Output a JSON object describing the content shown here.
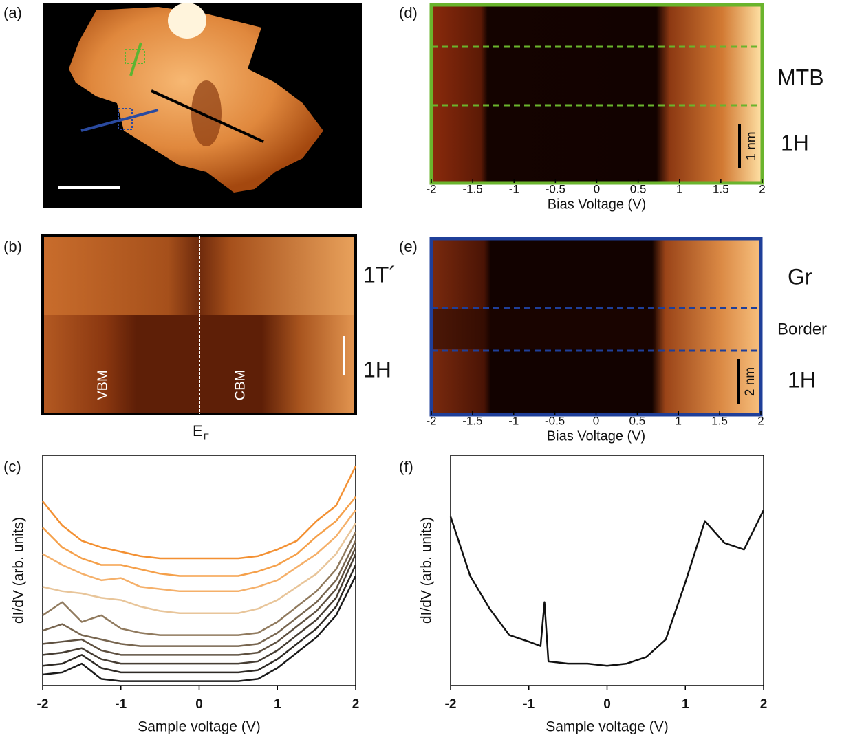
{
  "chart_data": [
    {
      "type": "image",
      "panel": "(a)"
    },
    {
      "type": "heatmap",
      "panel": "(b)",
      "region_labels": [
        "1T´",
        "1H"
      ],
      "band_labels": [
        "VBM",
        "CBM"
      ],
      "fermi_label": "E",
      "fermi_subscript": "F"
    },
    {
      "type": "line",
      "panel": "(c)",
      "xlabel": "Sample voltage (V)",
      "ylabel": "dI/dV (arb. units)",
      "xlim": [
        -2,
        2
      ],
      "xticks": [
        -2,
        -1,
        0,
        1,
        2
      ],
      "ylim": [
        0,
        10.5
      ],
      "x": [
        -2,
        -1.75,
        -1.5,
        -1.25,
        -1,
        -0.75,
        -0.5,
        -0.25,
        0,
        0.25,
        0.5,
        0.75,
        1,
        1.25,
        1.5,
        1.75,
        2
      ],
      "series": [
        {
          "color": "#1a1a1a",
          "values": [
            0.5,
            0.6,
            1.0,
            0.3,
            0.2,
            0.2,
            0.2,
            0.2,
            0.2,
            0.2,
            0.2,
            0.3,
            0.8,
            1.5,
            2.2,
            3.2,
            5.0
          ]
        },
        {
          "color": "#2e2a25",
          "values": [
            0.9,
            1.0,
            1.4,
            0.8,
            0.6,
            0.6,
            0.6,
            0.6,
            0.6,
            0.6,
            0.6,
            0.7,
            1.2,
            1.9,
            2.6,
            3.6,
            5.5
          ]
        },
        {
          "color": "#463d33",
          "values": [
            1.4,
            1.5,
            1.7,
            1.2,
            1.0,
            1.0,
            1.0,
            1.0,
            1.0,
            1.0,
            1.0,
            1.1,
            1.6,
            2.3,
            3.0,
            4.0,
            6.0
          ]
        },
        {
          "color": "#5e5040",
          "values": [
            1.9,
            2.0,
            2.1,
            1.6,
            1.4,
            1.4,
            1.4,
            1.4,
            1.4,
            1.4,
            1.4,
            1.5,
            2.0,
            2.7,
            3.4,
            4.4,
            6.3
          ]
        },
        {
          "color": "#77654f",
          "values": [
            2.5,
            2.8,
            2.3,
            2.1,
            1.9,
            1.8,
            1.8,
            1.8,
            1.8,
            1.8,
            1.8,
            1.9,
            2.4,
            3.1,
            3.8,
            4.8,
            6.6
          ]
        },
        {
          "color": "#907a5e",
          "values": [
            3.2,
            3.8,
            2.9,
            3.2,
            2.6,
            2.4,
            2.3,
            2.3,
            2.3,
            2.3,
            2.3,
            2.4,
            2.9,
            3.6,
            4.3,
            5.3,
            7.0
          ]
        },
        {
          "color": "#e8c59a",
          "values": [
            4.5,
            4.3,
            4.2,
            4.0,
            3.9,
            3.6,
            3.4,
            3.3,
            3.3,
            3.3,
            3.3,
            3.5,
            3.9,
            4.5,
            5.1,
            6.0,
            7.4
          ]
        },
        {
          "color": "#f5b06a",
          "values": [
            6.0,
            5.5,
            5.1,
            4.8,
            4.9,
            4.5,
            4.4,
            4.3,
            4.3,
            4.3,
            4.3,
            4.5,
            4.8,
            5.4,
            6.0,
            6.8,
            8.0
          ]
        },
        {
          "color": "#f5a04a",
          "values": [
            7.2,
            6.3,
            5.8,
            5.5,
            5.5,
            5.3,
            5.1,
            5.0,
            5.0,
            5.0,
            5.0,
            5.2,
            5.5,
            6.0,
            6.8,
            7.5,
            8.6
          ]
        },
        {
          "color": "#f39032",
          "values": [
            8.4,
            7.3,
            6.6,
            6.3,
            6.1,
            5.9,
            5.8,
            5.8,
            5.8,
            5.8,
            5.8,
            5.9,
            6.2,
            6.6,
            7.5,
            8.2,
            10.0
          ]
        }
      ]
    },
    {
      "type": "heatmap",
      "panel": "(d)",
      "xlabel": "Bias Voltage (V)",
      "xlim": [
        -2,
        2
      ],
      "xticks": [
        -2,
        -1.5,
        -1,
        -0.5,
        0,
        0.5,
        1,
        1.5,
        2
      ],
      "region_labels": [
        "MTB",
        "1H"
      ],
      "scale_label": "1 nm",
      "frame_color": "#6ab42d"
    },
    {
      "type": "heatmap",
      "panel": "(e)",
      "xlabel": "Bias Voltage (V)",
      "xlim": [
        -2,
        2
      ],
      "xticks": [
        -2,
        -1.5,
        -1,
        -0.5,
        0,
        0.5,
        1,
        1.5,
        2
      ],
      "region_labels": [
        "Gr",
        "Border",
        "1H"
      ],
      "scale_label": "2 nm",
      "frame_color": "#1f3f99"
    },
    {
      "type": "line",
      "panel": "(f)",
      "xlabel": "Sample voltage (V)",
      "ylabel": "dI/dV (arb. units)",
      "xlim": [
        -2,
        2
      ],
      "xticks": [
        -2,
        -1,
        0,
        1,
        2
      ],
      "ylim": [
        0,
        10.5
      ],
      "x": [
        -2,
        -1.75,
        -1.5,
        -1.25,
        -1,
        -0.85,
        -0.8,
        -0.75,
        -0.5,
        -0.25,
        0,
        0.25,
        0.5,
        0.75,
        1,
        1.25,
        1.5,
        1.75,
        2
      ],
      "series": [
        {
          "color": "#111111",
          "values": [
            7.7,
            5.0,
            3.5,
            2.3,
            2.0,
            1.8,
            3.8,
            1.1,
            1.0,
            1.0,
            0.9,
            1.0,
            1.3,
            2.1,
            4.7,
            7.5,
            6.5,
            6.2,
            8.0
          ]
        }
      ]
    }
  ]
}
